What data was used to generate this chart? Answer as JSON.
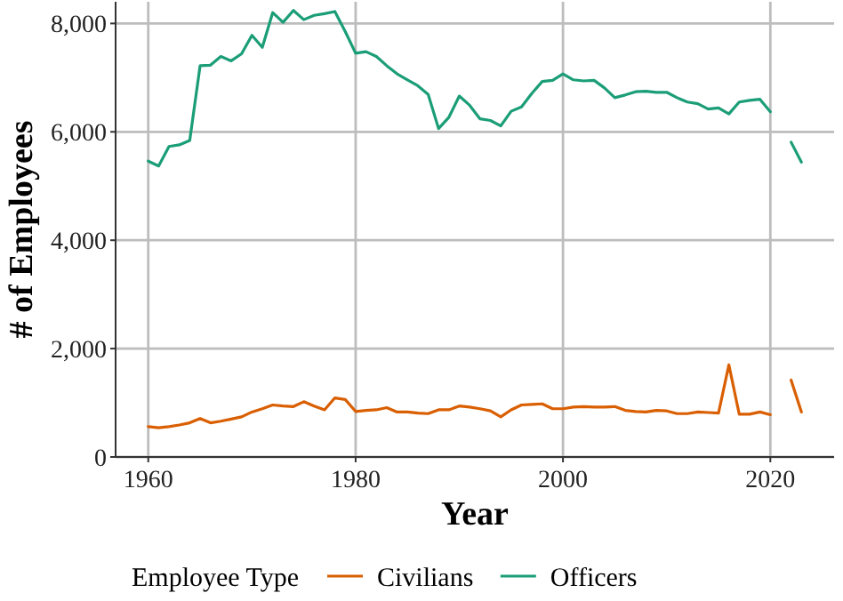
{
  "chart_data": {
    "type": "line",
    "xlabel": "Year",
    "ylabel": "# of Employees",
    "legend_title": "Employee Type",
    "legend": "bottom",
    "grid": true,
    "line_style": "solid",
    "marker": "none",
    "xlim": [
      1956.85,
      2026.15
    ],
    "xticks": [
      1960,
      1980,
      2000,
      2020
    ],
    "ylim": [
      0,
      8400
    ],
    "yticks": [
      {
        "value": 0,
        "label": "0"
      },
      {
        "value": 2000,
        "label": "2,000"
      },
      {
        "value": 4000,
        "label": "4,000"
      },
      {
        "value": 6000,
        "label": "6,000"
      },
      {
        "value": 8000,
        "label": "8,000"
      }
    ],
    "series": [
      {
        "name": "Civilians",
        "color": "#d95f02",
        "x": [
          1960,
          1961,
          1962,
          1963,
          1964,
          1965,
          1966,
          1967,
          1968,
          1969,
          1970,
          1971,
          1972,
          1973,
          1974,
          1975,
          1976,
          1977,
          1978,
          1979,
          1980,
          1981,
          1982,
          1983,
          1984,
          1985,
          1986,
          1987,
          1988,
          1989,
          1990,
          1991,
          1992,
          1993,
          1994,
          1995,
          1996,
          1997,
          1998,
          1999,
          2000,
          2001,
          2002,
          2003,
          2004,
          2005,
          2006,
          2007,
          2008,
          2009,
          2010,
          2011,
          2012,
          2013,
          2014,
          2015,
          2016,
          2017,
          2018,
          2019,
          2020
        ],
        "values": [
          560,
          540,
          560,
          590,
          630,
          710,
          630,
          660,
          700,
          740,
          830,
          890,
          960,
          940,
          930,
          1020,
          940,
          870,
          1090,
          1060,
          840,
          860,
          870,
          910,
          830,
          830,
          810,
          800,
          870,
          870,
          940,
          920,
          890,
          850,
          740,
          870,
          960,
          970,
          980,
          890,
          890,
          920,
          930,
          920,
          920,
          930,
          860,
          840,
          830,
          860,
          850,
          800,
          800,
          830,
          820,
          810,
          1700,
          790,
          790,
          830,
          780
        ]
      },
      {
        "name": "Officers",
        "color": "#1b9e77",
        "x": [
          1960,
          1961,
          1962,
          1963,
          1964,
          1965,
          1966,
          1967,
          1968,
          1969,
          1970,
          1971,
          1972,
          1973,
          1974,
          1975,
          1976,
          1977,
          1978,
          1979,
          1980,
          1981,
          1982,
          1983,
          1984,
          1985,
          1986,
          1987,
          1988,
          1989,
          1990,
          1991,
          1992,
          1993,
          1994,
          1995,
          1996,
          1997,
          1998,
          1999,
          2000,
          2001,
          2002,
          2003,
          2004,
          2005,
          2006,
          2007,
          2008,
          2009,
          2010,
          2011,
          2012,
          2013,
          2014,
          2015,
          2016,
          2017,
          2018,
          2019,
          2020
        ],
        "values": [
          5460,
          5370,
          5730,
          5760,
          5840,
          7220,
          7230,
          7390,
          7310,
          7440,
          7780,
          7560,
          8200,
          8020,
          8240,
          8070,
          8150,
          8180,
          8220,
          7850,
          7450,
          7480,
          7390,
          7220,
          7070,
          6960,
          6850,
          6690,
          6060,
          6270,
          6660,
          6490,
          6240,
          6210,
          6110,
          6380,
          6460,
          6710,
          6930,
          6950,
          7070,
          6960,
          6940,
          6950,
          6810,
          6630,
          6680,
          6740,
          6750,
          6730,
          6730,
          6630,
          6550,
          6520,
          6420,
          6440,
          6330,
          6550,
          6580,
          6600,
          6370
        ]
      },
      {
        "color": "#d95f02",
        "x": [
          2022,
          2023
        ],
        "values": [
          1420,
          830
        ]
      },
      {
        "color": "#1b9e77",
        "x": [
          2022,
          2023
        ],
        "values": [
          5810,
          5440
        ]
      }
    ]
  }
}
